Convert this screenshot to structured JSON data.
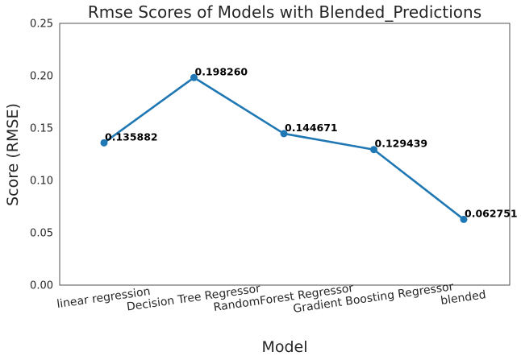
{
  "chart_data": {
    "type": "line",
    "title": "Rmse Scores of Models with Blended_Predictions",
    "xlabel": "Model",
    "ylabel": "Score (RMSE)",
    "categories": [
      "linear regression",
      "Decision Tree Regressor",
      "RandomForest Regressor",
      "Gradient Boosting Regressor",
      "blended"
    ],
    "values": [
      0.135882,
      0.19826,
      0.144671,
      0.129439,
      0.062751
    ],
    "data_labels": [
      "0.135882",
      "0.198260",
      "0.144671",
      "0.129439",
      "0.062751"
    ],
    "ylim": [
      0,
      0.25
    ],
    "yticks": [
      0.0,
      0.05,
      0.1,
      0.15,
      0.2,
      0.25
    ],
    "ytick_labels": [
      "0.00",
      "0.05",
      "0.10",
      "0.15",
      "0.20",
      "0.25"
    ],
    "grid": false,
    "line_color": "#1f77b4"
  }
}
